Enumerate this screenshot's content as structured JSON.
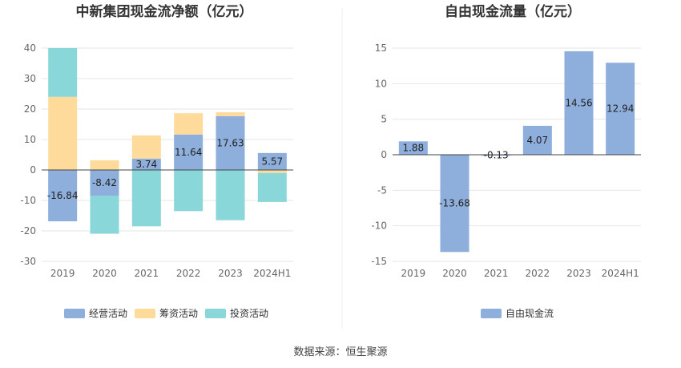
{
  "source": "数据来源：恒生聚源",
  "charts": [
    {
      "chart_data": {
        "type": "bar",
        "stacked": true,
        "title": "中新集团现金流净额（亿元）",
        "categories": [
          "2019",
          "2020",
          "2021",
          "2022",
          "2023",
          "2024H1"
        ],
        "ylim": [
          -30,
          40
        ],
        "yticks": [
          "40",
          "30",
          "20",
          "10",
          "0",
          "-10",
          "-20",
          "-30"
        ],
        "grid": true,
        "legend_position": "bottom",
        "series": [
          {
            "name": "经营活动",
            "color": "#8eaedc",
            "values": [
              -16.84,
              -8.42,
              3.74,
              11.64,
              17.63,
              5.57
            ],
            "labels": [
              "-16.84",
              "-8.42",
              "3.74",
              "11.64",
              "17.63",
              "5.57"
            ]
          },
          {
            "name": "筹资活动",
            "color": "#fedb9b",
            "values": [
              24,
              3.2,
              7.6,
              7,
              1.3,
              -1
            ]
          },
          {
            "name": "投资活动",
            "color": "#8ad7d9",
            "values": [
              16,
              -12.5,
              -18.5,
              -13.5,
              -16.5,
              -9.5
            ]
          }
        ]
      }
    },
    {
      "chart_data": {
        "type": "bar",
        "title": "自由现金流量（亿元）",
        "categories": [
          "2019",
          "2020",
          "2021",
          "2022",
          "2023",
          "2024H1"
        ],
        "ylim": [
          -15,
          15
        ],
        "yticks": [
          "15",
          "10",
          "5",
          "0",
          "-5",
          "-10",
          "-15"
        ],
        "grid": true,
        "legend_position": "bottom",
        "series": [
          {
            "name": "自由现金流",
            "color": "#8eaedc",
            "values": [
              1.88,
              -13.68,
              -0.13,
              4.07,
              14.56,
              12.94
            ],
            "labels": [
              "1.88",
              "-13.68",
              "-0.13",
              "4.07",
              "14.56",
              "12.94"
            ]
          }
        ]
      }
    }
  ]
}
